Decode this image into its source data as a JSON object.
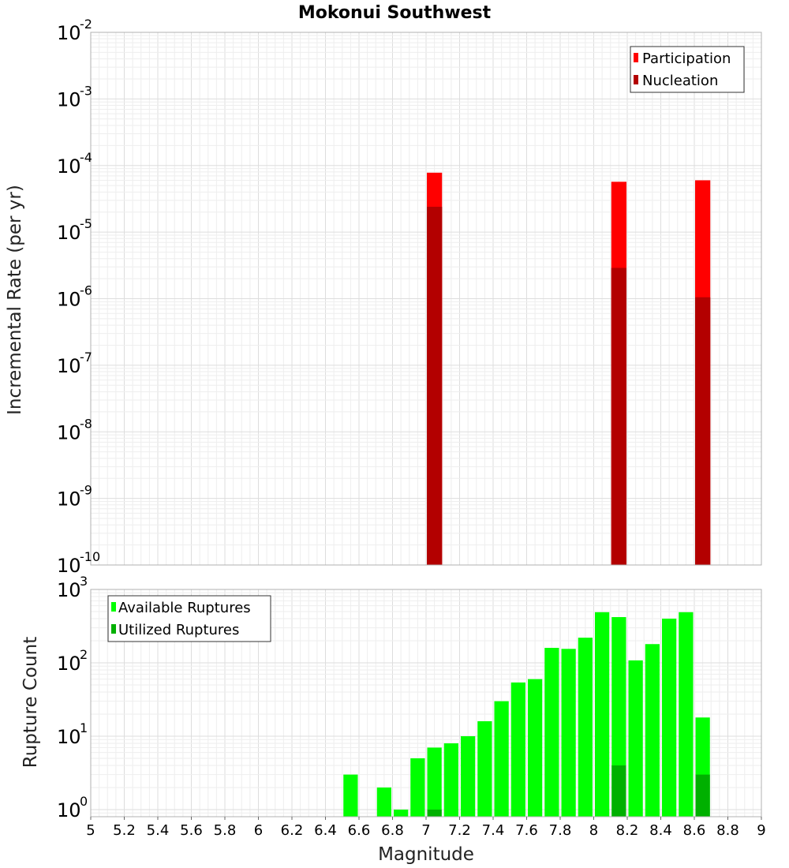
{
  "chart_data": [
    {
      "type": "bar",
      "title": "Mokonui Southwest",
      "xlabel": "",
      "ylabel": "Incremental Rate (per yr)",
      "yscale": "log",
      "xlim": [
        5,
        9
      ],
      "ylim": [
        1e-10,
        0.01
      ],
      "y_ticks": [
        {
          "base": "10",
          "exp": "-10",
          "value": 1e-10
        },
        {
          "base": "10",
          "exp": "-9",
          "value": 1e-09
        },
        {
          "base": "10",
          "exp": "-8",
          "value": 1e-08
        },
        {
          "base": "10",
          "exp": "-7",
          "value": 1e-07
        },
        {
          "base": "10",
          "exp": "-6",
          "value": 1e-06
        },
        {
          "base": "10",
          "exp": "-5",
          "value": 1e-05
        },
        {
          "base": "10",
          "exp": "-4",
          "value": 0.0001
        },
        {
          "base": "10",
          "exp": "-3",
          "value": 0.001
        },
        {
          "base": "10",
          "exp": "-2",
          "value": 0.01
        }
      ],
      "bin_width": 0.1,
      "legend": {
        "position": "top-right",
        "items": [
          "Participation",
          "Nucleation"
        ]
      },
      "series": [
        {
          "name": "Participation",
          "color": "#ff0000",
          "x": [
            7.05,
            8.15,
            8.65
          ],
          "values": [
            7.8e-05,
            5.7e-05,
            6e-05
          ]
        },
        {
          "name": "Nucleation",
          "color": "#b30000",
          "x": [
            7.05,
            8.15,
            8.65
          ],
          "values": [
            2.4e-05,
            2.9e-06,
            1.05e-06
          ]
        }
      ]
    },
    {
      "type": "bar",
      "title": "",
      "xlabel": "Magnitude",
      "ylabel": "Rupture Count",
      "yscale": "log",
      "xlim": [
        5,
        9
      ],
      "ylim": [
        0.8,
        1000
      ],
      "x_ticks": [
        "5",
        "5.2",
        "5.4",
        "5.6",
        "5.8",
        "6",
        "6.2",
        "6.4",
        "6.6",
        "6.8",
        "7",
        "7.2",
        "7.4",
        "7.6",
        "7.8",
        "8",
        "8.2",
        "8.4",
        "8.6",
        "8.8",
        "9"
      ],
      "y_ticks": [
        {
          "base": "10",
          "exp": "0",
          "value": 1
        },
        {
          "base": "10",
          "exp": "1",
          "value": 10
        },
        {
          "base": "10",
          "exp": "2",
          "value": 100
        },
        {
          "base": "10",
          "exp": "3",
          "value": 1000
        }
      ],
      "bin_width": 0.1,
      "legend": {
        "position": "top-left",
        "items": [
          "Available Ruptures",
          "Utilized Ruptures"
        ]
      },
      "series": [
        {
          "name": "Available Ruptures",
          "color": "#00ff00",
          "x": [
            6.55,
            6.75,
            6.85,
            6.95,
            7.05,
            7.15,
            7.25,
            7.35,
            7.45,
            7.55,
            7.65,
            7.75,
            7.85,
            7.95,
            8.05,
            8.15,
            8.25,
            8.35,
            8.45,
            8.55,
            8.65
          ],
          "values": [
            3,
            2,
            1,
            5,
            7,
            8,
            10,
            16,
            30,
            54,
            60,
            160,
            155,
            220,
            490,
            420,
            108,
            180,
            400,
            490,
            18
          ]
        },
        {
          "name": "Utilized Ruptures",
          "color": "#00b000",
          "x": [
            7.05,
            8.15,
            8.65
          ],
          "values": [
            1,
            4,
            3
          ]
        }
      ]
    }
  ]
}
